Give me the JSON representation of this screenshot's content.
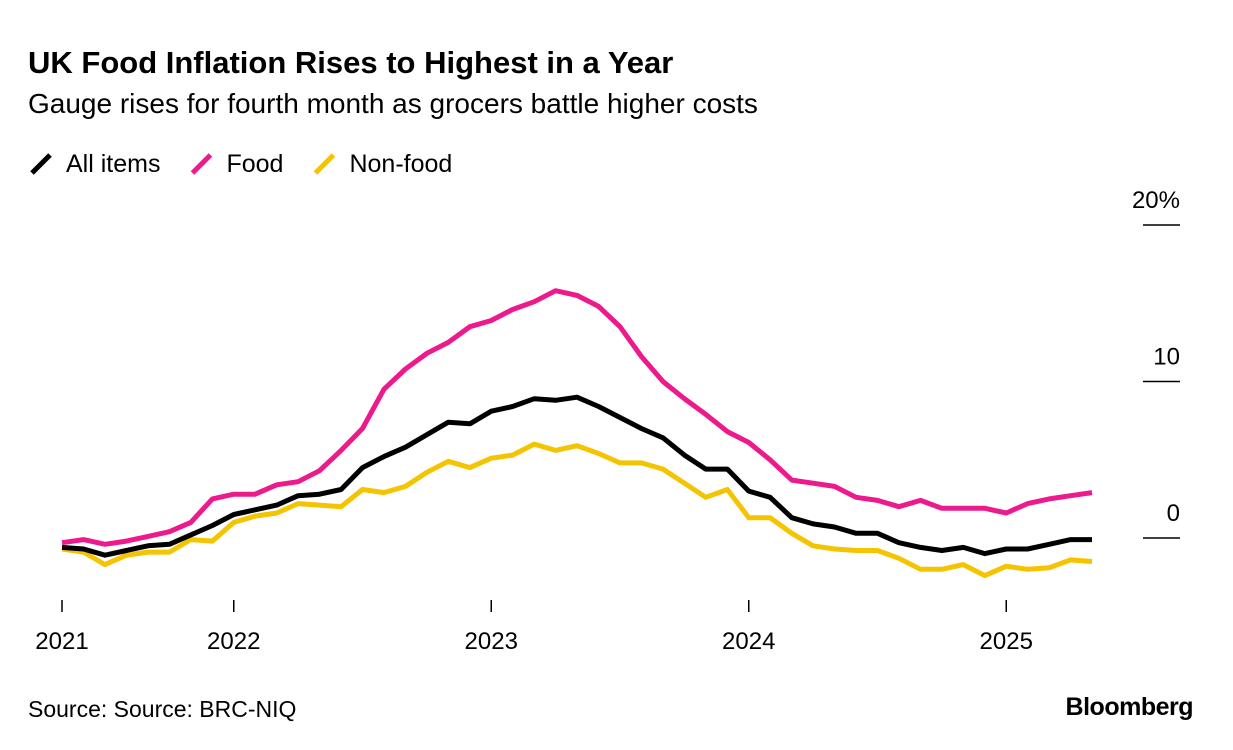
{
  "chart_data": {
    "type": "line",
    "title": "UK Food Inflation Rises to Highest in a Year",
    "subtitle": "Gauge rises for fourth month as grocers battle higher costs",
    "source": "Source: Source: BRC-NIQ",
    "brand": "Bloomberg",
    "x": [
      2021.333,
      2021.417,
      2021.5,
      2021.583,
      2021.667,
      2021.75,
      2021.833,
      2021.917,
      2022,
      2022.083,
      2022.167,
      2022.25,
      2022.333,
      2022.417,
      2022.5,
      2022.583,
      2022.667,
      2022.75,
      2022.833,
      2022.917,
      2023,
      2023.083,
      2023.167,
      2023.25,
      2023.333,
      2023.417,
      2023.5,
      2023.583,
      2023.667,
      2023.75,
      2023.833,
      2023.917,
      2024,
      2024.083,
      2024.167,
      2024.25,
      2024.333,
      2024.417,
      2024.5,
      2024.583,
      2024.667,
      2024.75,
      2024.833,
      2024.917,
      2025,
      2025.083,
      2025.167,
      2025.25,
      2025.333
    ],
    "series": [
      {
        "name": "All items",
        "color": "#000000",
        "values": [
          -0.6,
          -0.7,
          -1.1,
          -0.8,
          -0.5,
          -0.4,
          0.2,
          0.8,
          1.5,
          1.8,
          2.1,
          2.7,
          2.8,
          3.1,
          4.5,
          5.2,
          5.8,
          6.6,
          7.4,
          7.3,
          8.1,
          8.4,
          8.9,
          8.8,
          9.0,
          8.4,
          7.7,
          7.0,
          6.4,
          5.3,
          4.4,
          4.4,
          3.0,
          2.6,
          1.3,
          0.9,
          0.7,
          0.3,
          0.3,
          -0.3,
          -0.6,
          -0.8,
          -0.6,
          -1.0,
          -0.7,
          -0.7,
          -0.4,
          -0.1,
          -0.1
        ]
      },
      {
        "name": "Food",
        "color": "#ec1a8c",
        "values": [
          -0.3,
          -0.1,
          -0.4,
          -0.2,
          0.1,
          0.4,
          1.0,
          2.5,
          2.8,
          2.8,
          3.4,
          3.6,
          4.3,
          5.6,
          7.0,
          9.5,
          10.8,
          11.8,
          12.5,
          13.5,
          13.9,
          14.6,
          15.1,
          15.8,
          15.5,
          14.8,
          13.5,
          11.6,
          10.0,
          8.9,
          7.9,
          6.8,
          6.1,
          5.0,
          3.7,
          3.5,
          3.3,
          2.6,
          2.4,
          2.0,
          2.4,
          1.9,
          1.9,
          1.9,
          1.6,
          2.2,
          2.5,
          2.7,
          2.9
        ]
      },
      {
        "name": "Non-food",
        "color": "#f5c400",
        "values": [
          -0.7,
          -0.9,
          -1.7,
          -1.1,
          -0.9,
          -0.9,
          -0.1,
          -0.2,
          1.0,
          1.4,
          1.6,
          2.2,
          2.1,
          2.0,
          3.1,
          2.9,
          3.3,
          4.2,
          4.9,
          4.5,
          5.1,
          5.3,
          6.0,
          5.6,
          5.9,
          5.4,
          4.8,
          4.8,
          4.4,
          3.5,
          2.6,
          3.1,
          1.3,
          1.3,
          0.3,
          -0.5,
          -0.7,
          -0.8,
          -0.8,
          -1.3,
          -2.0,
          -2.0,
          -1.7,
          -2.4,
          -1.8,
          -2.0,
          -1.9,
          -1.4,
          -1.5
        ]
      }
    ],
    "xlim": [
      2021.333,
      2025.333
    ],
    "xticks": [
      {
        "value": 2021.333,
        "label": "2021"
      },
      2022,
      2023,
      2024,
      2025
    ],
    "ylim": [
      -4,
      20
    ],
    "yticks": [
      0,
      10,
      {
        "value": 20,
        "label": "20%"
      }
    ],
    "legend": "top-left"
  }
}
